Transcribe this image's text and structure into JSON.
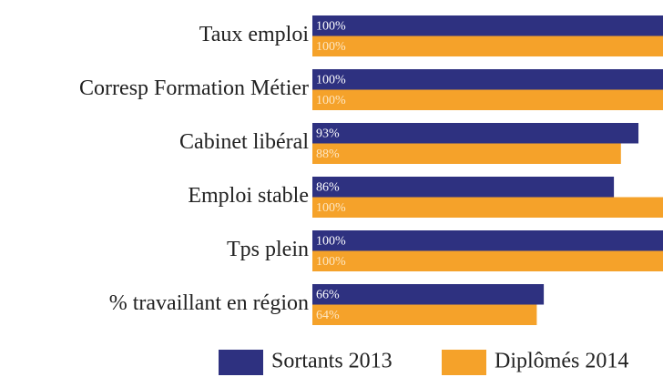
{
  "chart_data": {
    "type": "barh",
    "categories": [
      "Taux emploi",
      "Corresp Formation Métier",
      "Cabinet libéral",
      "Emploi stable",
      "Tps plein",
      "% travaillant en région"
    ],
    "series": [
      {
        "name": "Sortants 2013",
        "color": "#2e3180",
        "values": [
          100,
          100,
          93,
          86,
          100,
          66
        ],
        "value_labels": [
          "100%",
          "100%",
          "93%",
          "86%",
          "100%",
          "66%"
        ]
      },
      {
        "name": "Diplômés 2014",
        "color": "#f5a22a",
        "values": [
          100,
          100,
          88,
          100,
          100,
          64
        ],
        "value_labels": [
          "100%",
          "100%",
          "88%",
          "100%",
          "100%",
          "64%"
        ]
      }
    ],
    "xlim": [
      0,
      100
    ],
    "legend": "bottom"
  }
}
